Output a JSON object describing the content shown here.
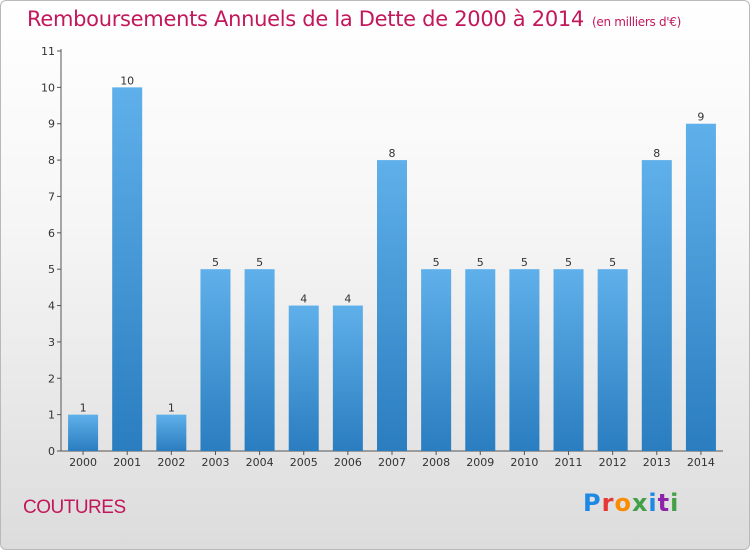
{
  "header": {
    "title": "Remboursements Annuels de la Dette de 2000 à 2014",
    "unit": "(en milliers d'€)"
  },
  "footer": {
    "town": "COUTURES",
    "logo": "Proxiti",
    "logo_colors": [
      "#1e88e5",
      "#e53935",
      "#fb8c00",
      "#43a047",
      "#1e88e5",
      "#8e24aa",
      "#43a047"
    ]
  },
  "chart_data": {
    "type": "bar",
    "title": "Remboursements Annuels de la Dette de 2000 à 2014",
    "categories": [
      "2000",
      "2001",
      "2002",
      "2003",
      "2004",
      "2005",
      "2006",
      "2007",
      "2008",
      "2009",
      "2010",
      "2011",
      "2012",
      "2013",
      "2014"
    ],
    "values": [
      1,
      10,
      1,
      5,
      5,
      4,
      4,
      8,
      5,
      5,
      5,
      5,
      5,
      8,
      9
    ],
    "data_labels": [
      "1",
      "10",
      "1",
      "5",
      "5",
      "4",
      "4",
      "8",
      "5",
      "5",
      "5",
      "5",
      "5",
      "8",
      "9"
    ],
    "yticks": [
      "0",
      "1",
      "2",
      "3",
      "4",
      "5",
      "6",
      "7",
      "8",
      "9",
      "10",
      "11"
    ],
    "ylim": [
      0,
      11
    ],
    "grid": false,
    "bar_color_top": "#5fb0ea",
    "bar_color_bottom": "#2a7dbf",
    "label_color": "#333333"
  }
}
